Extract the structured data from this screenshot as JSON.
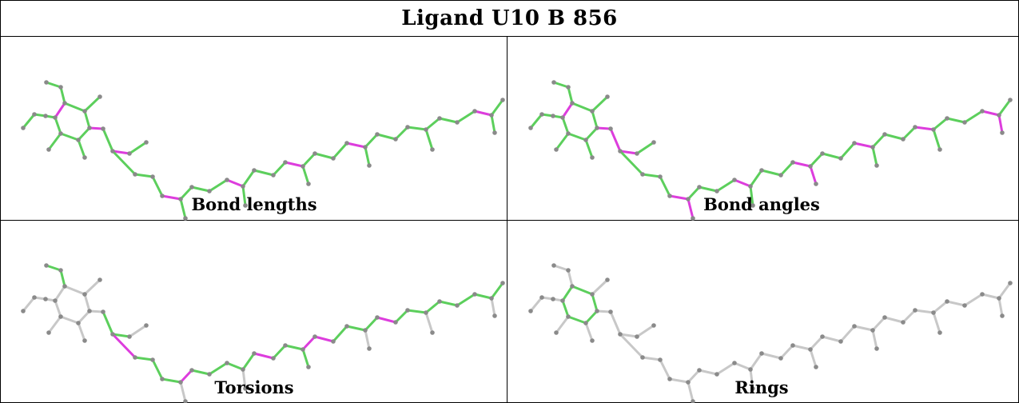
{
  "title": "Ligand U10 B 856",
  "panels": [
    {
      "caption": "Bond lengths"
    },
    {
      "caption": "Bond angles"
    },
    {
      "caption": "Torsions"
    },
    {
      "caption": "Rings"
    }
  ],
  "colors": {
    "good": "#5ccf5c",
    "outlier": "#dd3ddd",
    "neutral": "#c8c8c8",
    "atom": "#8a8a8a",
    "border": "#000000"
  }
}
